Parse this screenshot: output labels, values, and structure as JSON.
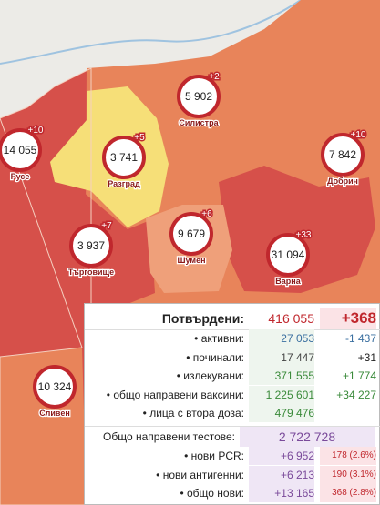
{
  "cities": [
    {
      "name": "Русе",
      "total": "14 055",
      "new": "+10"
    },
    {
      "name": "Разград",
      "total": "3 741",
      "new": "+5"
    },
    {
      "name": "Силистра",
      "total": "5 902",
      "new": "+2"
    },
    {
      "name": "Добрич",
      "total": "7 842",
      "new": "+10"
    },
    {
      "name": "Търговище",
      "total": "3 937",
      "new": "+7"
    },
    {
      "name": "Шумен",
      "total": "9 679",
      "new": "+6"
    },
    {
      "name": "Варна",
      "total": "31 094",
      "new": "+33"
    },
    {
      "name": "Сливен",
      "total": "10 324"
    }
  ],
  "panel": {
    "confirmed": {
      "label": "Потвърдени:",
      "value": "416 055",
      "delta": "+368"
    },
    "rows": [
      {
        "label": "• активни:",
        "value": "27 053",
        "delta": "-1 437"
      },
      {
        "label": "• починали:",
        "value": "17 447",
        "delta": "+31"
      },
      {
        "label": "• излекувани:",
        "value": "371 555",
        "delta": "+1 774"
      },
      {
        "label": "• общо направени ваксини:",
        "value": "1 225 601",
        "delta": "+34 227"
      },
      {
        "label": "• лица с втора доза:",
        "value": "479 476"
      }
    ],
    "tests": {
      "label": "Общо направени тестове:",
      "value": "2 722 728"
    },
    "test_rows": [
      {
        "label": "• нови PCR:",
        "delta": "+6 952",
        "share": "178 (2.6%)"
      },
      {
        "label": "• нови антигенни:",
        "delta": "+6 213",
        "share": "190 (3.1%)"
      },
      {
        "label": "• общо нови:",
        "delta": "+13 165",
        "share": "368 (2.8%)"
      }
    ]
  }
}
